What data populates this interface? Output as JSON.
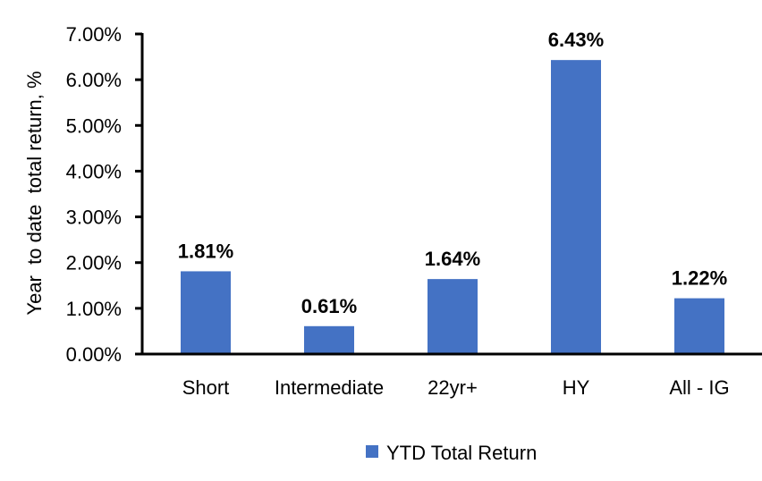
{
  "chart_data": {
    "type": "bar",
    "categories": [
      "Short",
      "Intermediate",
      "22yr+",
      "HY",
      "All - IG"
    ],
    "series": [
      {
        "name": "YTD Total Return",
        "values": [
          1.81,
          0.61,
          1.64,
          6.43,
          1.22
        ],
        "color": "#4472C4"
      }
    ],
    "data_labels": [
      "1.81%",
      "0.61%",
      "1.64%",
      "6.43%",
      "1.22%"
    ],
    "title": "",
    "xlabel": "",
    "ylabel": "Year  to date  total return, %",
    "ylim": [
      0,
      7
    ],
    "yticks": [
      "0.00%",
      "1.00%",
      "2.00%",
      "3.00%",
      "4.00%",
      "5.00%",
      "6.00%",
      "7.00%"
    ],
    "grid": false,
    "legend": "bottom"
  }
}
